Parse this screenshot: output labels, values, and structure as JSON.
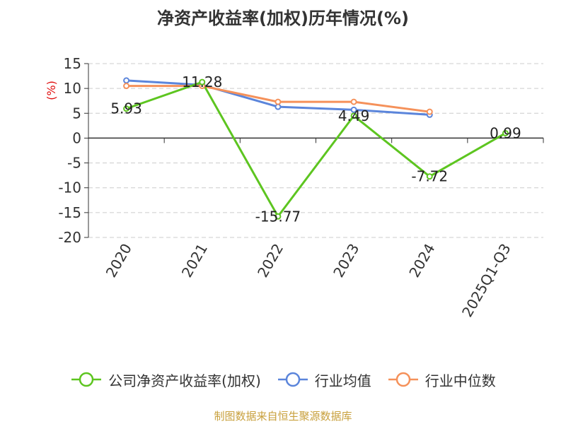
{
  "title": "净资产收益率(加权)历年情况(%)",
  "footer": "制图数据来自恒生聚源数据库",
  "chart_data": {
    "type": "line",
    "ylabel": "(%)",
    "ylim": [
      -20,
      15
    ],
    "yticks": [
      15,
      10,
      5,
      0,
      -5,
      -10,
      -15,
      -20
    ],
    "grid": true,
    "legend_position": "bottom",
    "categories": [
      "2020",
      "2021",
      "2022",
      "2023",
      "2024",
      "2025Q1-Q3"
    ],
    "series": [
      {
        "name": "公司净资产收益率(加权)",
        "color": "#5dc520",
        "values": [
          5.93,
          11.28,
          -15.77,
          4.49,
          -7.72,
          0.99
        ],
        "labels": [
          "5.93",
          "11.28",
          "-15.77",
          "4.49",
          "-7.72",
          "0.99"
        ]
      },
      {
        "name": "行业均值",
        "color": "#5b85db",
        "values": [
          11.6,
          10.7,
          6.3,
          5.7,
          4.7,
          null
        ]
      },
      {
        "name": "行业中位数",
        "color": "#f5915a",
        "values": [
          10.5,
          10.5,
          7.3,
          7.3,
          5.3,
          null
        ]
      }
    ]
  }
}
